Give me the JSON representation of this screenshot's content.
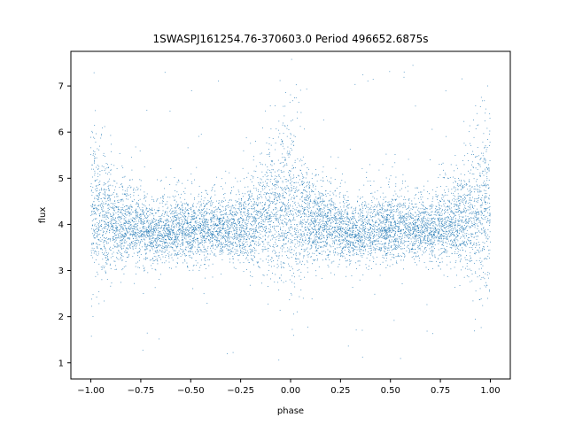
{
  "chart_data": {
    "type": "scatter",
    "title": "1SWASPJ161254.76-370603.0 Period 496652.6875s",
    "xlabel": "phase",
    "ylabel": "flux",
    "xlim": [
      -1.1,
      1.1
    ],
    "ylim": [
      0.65,
      7.75
    ],
    "x_ticks": [
      -1.0,
      -0.75,
      -0.5,
      -0.25,
      0.0,
      0.25,
      0.5,
      0.75,
      1.0
    ],
    "x_tick_labels": [
      "−1.00",
      "−0.75",
      "−0.50",
      "−0.25",
      "0.00",
      "0.25",
      "0.50",
      "0.75",
      "1.00"
    ],
    "y_ticks": [
      1,
      2,
      3,
      4,
      5,
      6,
      7
    ],
    "y_tick_labels": [
      "1",
      "2",
      "3",
      "4",
      "5",
      "6",
      "7"
    ],
    "grid": false,
    "marker_color": "#1f77b4",
    "series": [
      {
        "phase_range": [
          -1.0,
          1.0
        ],
        "profile": [
          {
            "phase": -1.0,
            "median": 4.4,
            "spread": 0.9
          },
          {
            "phase": -0.95,
            "median": 4.1,
            "spread": 0.6
          },
          {
            "phase": -0.8,
            "median": 4.0,
            "spread": 0.35
          },
          {
            "phase": -0.7,
            "median": 3.8,
            "spread": 0.3
          },
          {
            "phase": -0.5,
            "median": 3.9,
            "spread": 0.35
          },
          {
            "phase": -0.3,
            "median": 3.9,
            "spread": 0.3
          },
          {
            "phase": -0.15,
            "median": 4.1,
            "spread": 0.5
          },
          {
            "phase": 0.0,
            "median": 4.4,
            "spread": 0.9
          },
          {
            "phase": 0.05,
            "median": 4.1,
            "spread": 0.6
          },
          {
            "phase": 0.2,
            "median": 4.0,
            "spread": 0.35
          },
          {
            "phase": 0.3,
            "median": 3.8,
            "spread": 0.3
          },
          {
            "phase": 0.5,
            "median": 3.9,
            "spread": 0.35
          },
          {
            "phase": 0.7,
            "median": 3.9,
            "spread": 0.3
          },
          {
            "phase": 0.85,
            "median": 4.1,
            "spread": 0.5
          },
          {
            "phase": 1.0,
            "median": 4.4,
            "spread": 0.9
          }
        ],
        "n_points": 9000,
        "outlier_flux_range": [
          1.0,
          7.5
        ]
      }
    ]
  }
}
